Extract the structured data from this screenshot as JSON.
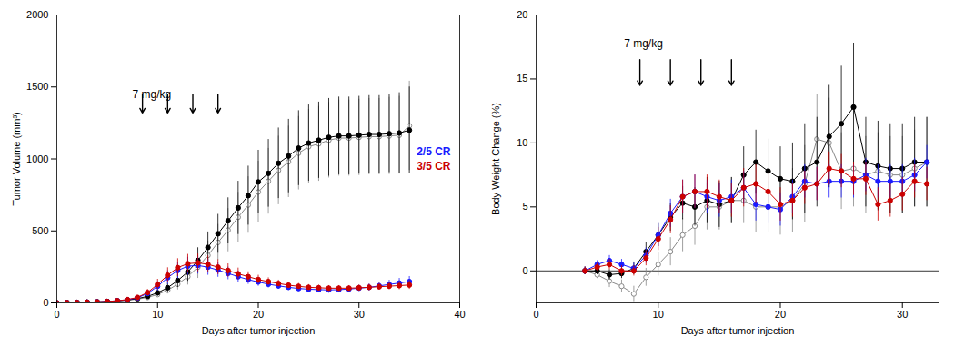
{
  "chart_data": [
    {
      "type": "line",
      "xlabel": "Days after tumor injection",
      "ylabel": "Tumor Volume (mm³)",
      "xlim": [
        0,
        40
      ],
      "xticks": [
        0,
        10,
        20,
        30,
        40
      ],
      "ylim": [
        0,
        2000
      ],
      "yticks": [
        0,
        500,
        1000,
        1500,
        2000
      ],
      "grid": false,
      "legend": "right",
      "annotations": [
        {
          "text": "7 mg/kg",
          "x": 7.5,
          "y": 1420
        }
      ],
      "arrows": [
        {
          "x": 8.5,
          "y_from": 1450,
          "y_to": 1320
        },
        {
          "x": 11,
          "y_from": 1450,
          "y_to": 1320
        },
        {
          "x": 13.5,
          "y_from": 1450,
          "y_to": 1320
        },
        {
          "x": 16,
          "y_from": 1450,
          "y_to": 1320
        }
      ],
      "x": [
        0,
        1,
        2,
        3,
        4,
        5,
        6,
        7,
        8,
        9,
        10,
        11,
        12,
        13,
        14,
        15,
        16,
        17,
        18,
        19,
        20,
        21,
        22,
        23,
        24,
        25,
        26,
        27,
        28,
        29,
        30,
        31,
        32,
        33,
        34,
        35
      ],
      "series": [
        {
          "color": "#888888",
          "marker": "open circle",
          "values": [
            0,
            2,
            3,
            5,
            7,
            9,
            13,
            18,
            26,
            38,
            58,
            88,
            130,
            182,
            248,
            330,
            420,
            505,
            595,
            680,
            770,
            845,
            920,
            980,
            1040,
            1085,
            1105,
            1130,
            1145,
            1145,
            1150,
            1155,
            1155,
            1160,
            1165,
            1230
          ],
          "yerr": [
            0,
            1,
            1,
            2,
            3,
            3,
            4,
            6,
            8,
            12,
            18,
            26,
            40,
            58,
            78,
            100,
            125,
            150,
            173,
            196,
            214,
            228,
            238,
            248,
            255,
            258,
            260,
            262,
            264,
            264,
            265,
            265,
            265,
            268,
            270,
            310
          ]
        },
        {
          "color": "black",
          "marker": "circle",
          "values": [
            0,
            2,
            3,
            5,
            7,
            10,
            14,
            20,
            30,
            45,
            70,
            105,
            155,
            215,
            295,
            385,
            480,
            570,
            660,
            745,
            840,
            900,
            970,
            1020,
            1075,
            1110,
            1130,
            1150,
            1160,
            1160,
            1165,
            1170,
            1170,
            1175,
            1180,
            1200
          ],
          "yerr": [
            0,
            1,
            1,
            2,
            3,
            4,
            5,
            7,
            10,
            15,
            22,
            32,
            48,
            65,
            88,
            108,
            135,
            160,
            185,
            205,
            220,
            235,
            245,
            255,
            260,
            265,
            265,
            270,
            270,
            270,
            270,
            270,
            270,
            270,
            280,
            300
          ]
        },
        {
          "name": "2/5 CR",
          "color": "#1a1aff",
          "marker": "circle",
          "values": [
            0,
            2,
            3,
            5,
            7,
            10,
            15,
            22,
            35,
            65,
            115,
            175,
            225,
            255,
            260,
            248,
            228,
            205,
            182,
            162,
            145,
            130,
            118,
            108,
            100,
            95,
            92,
            90,
            92,
            96,
            102,
            108,
            118,
            128,
            138,
            148
          ],
          "yerr": [
            0,
            1,
            1,
            2,
            3,
            4,
            5,
            7,
            11,
            20,
            33,
            48,
            58,
            62,
            60,
            56,
            50,
            44,
            38,
            33,
            29,
            26,
            23,
            21,
            20,
            19,
            18,
            18,
            18,
            19,
            21,
            23,
            26,
            29,
            32,
            35
          ]
        },
        {
          "name": "3/5 CR",
          "color": "#cc0000",
          "marker": "circle",
          "values": [
            0,
            2,
            3,
            5,
            7,
            10,
            15,
            23,
            38,
            72,
            128,
            192,
            245,
            272,
            278,
            268,
            248,
            225,
            202,
            182,
            162,
            148,
            135,
            123,
            115,
            108,
            105,
            102,
            102,
            102,
            105,
            108,
            112,
            116,
            120,
            124
          ],
          "yerr": [
            0,
            1,
            1,
            2,
            3,
            4,
            5,
            7,
            12,
            22,
            36,
            52,
            62,
            65,
            62,
            58,
            52,
            46,
            40,
            34,
            30,
            26,
            23,
            21,
            20,
            19,
            18,
            18,
            18,
            18,
            19,
            21,
            23,
            25,
            28,
            30
          ]
        }
      ]
    },
    {
      "type": "line",
      "xlabel": "Days after tumor injection",
      "ylabel": "Body Weight Change (%)",
      "xlim": [
        0,
        33
      ],
      "xticks": [
        0,
        10,
        20,
        30
      ],
      "ylim": [
        -2.5,
        20
      ],
      "yticks": [
        0,
        5,
        10,
        15,
        20
      ],
      "grid": false,
      "hlines": [
        0
      ],
      "annotations": [
        {
          "text": "7 mg/kg",
          "x": 7.2,
          "y": 17.5
        }
      ],
      "arrows": [
        {
          "x": 8.5,
          "y_from": 16.5,
          "y_to": 14.5
        },
        {
          "x": 11,
          "y_from": 16.5,
          "y_to": 14.5
        },
        {
          "x": 13.5,
          "y_from": 16.5,
          "y_to": 14.5
        },
        {
          "x": 16,
          "y_from": 16.5,
          "y_to": 14.5
        }
      ],
      "x": [
        4,
        5,
        6,
        7,
        8,
        9,
        10,
        11,
        12,
        13,
        14,
        15,
        16,
        17,
        18,
        19,
        20,
        21,
        22,
        23,
        24,
        25,
        26,
        27,
        28,
        29,
        30,
        31,
        32
      ],
      "series": [
        {
          "color": "#888888",
          "marker": "open circle",
          "values": [
            0.0,
            -0.3,
            -0.8,
            -1.2,
            -1.8,
            -0.5,
            0.5,
            1.5,
            2.8,
            3.5,
            5.0,
            5.0,
            5.5,
            5.5,
            5.0,
            5.0,
            5.0,
            5.5,
            6.8,
            10.3,
            10.0,
            7.8,
            8.0,
            7.5,
            7.8,
            7.5,
            7.5,
            8.0,
            8.5
          ],
          "yerr": [
            0.3,
            0.3,
            0.5,
            0.5,
            0.6,
            0.7,
            0.9,
            1.1,
            1.3,
            1.5,
            1.8,
            1.8,
            1.8,
            1.8,
            2.0,
            2.0,
            2.2,
            2.5,
            3.0,
            3.5,
            3.5,
            3.0,
            3.0,
            3.0,
            3.0,
            3.0,
            3.0,
            3.0,
            3.5
          ]
        },
        {
          "color": "black",
          "marker": "circle",
          "values": [
            0.0,
            0.0,
            -0.3,
            -0.2,
            0.2,
            1.5,
            2.8,
            4.2,
            5.3,
            5.0,
            5.5,
            5.2,
            5.5,
            7.5,
            8.5,
            7.8,
            7.2,
            7.0,
            8.0,
            8.5,
            10.5,
            11.5,
            12.8,
            8.5,
            8.2,
            8.0,
            8.0,
            8.5,
            8.5
          ],
          "yerr": [
            0.3,
            0.3,
            0.4,
            0.4,
            0.5,
            0.7,
            0.9,
            1.1,
            1.3,
            1.5,
            1.8,
            1.8,
            1.8,
            2.2,
            2.5,
            2.5,
            2.5,
            3.0,
            3.5,
            3.5,
            4.0,
            4.5,
            5.0,
            3.5,
            3.5,
            3.5,
            3.5,
            3.5,
            3.5
          ]
        },
        {
          "color": "#1a1aff",
          "marker": "circle",
          "values": [
            0.0,
            0.5,
            0.8,
            0.5,
            0.2,
            1.2,
            2.8,
            4.5,
            5.8,
            6.2,
            5.8,
            5.5,
            5.8,
            6.5,
            5.2,
            5.0,
            4.8,
            5.8,
            7.0,
            6.8,
            7.0,
            7.0,
            7.0,
            7.5,
            7.0,
            7.0,
            7.0,
            7.5,
            8.5
          ],
          "yerr": [
            0.3,
            0.3,
            0.4,
            0.4,
            0.4,
            0.6,
            0.9,
            1.1,
            1.3,
            1.3,
            1.3,
            1.3,
            1.3,
            1.3,
            1.3,
            1.3,
            1.3,
            1.3,
            1.3,
            1.3,
            1.3,
            1.3,
            1.3,
            1.3,
            1.3,
            1.3,
            1.3,
            1.3,
            1.3
          ]
        },
        {
          "color": "#cc0000",
          "marker": "circle",
          "values": [
            0.0,
            0.3,
            0.5,
            0.0,
            0.0,
            1.0,
            2.5,
            4.0,
            5.8,
            6.2,
            6.2,
            5.8,
            5.5,
            6.5,
            6.8,
            6.2,
            5.2,
            5.5,
            6.5,
            6.8,
            8.0,
            7.8,
            7.2,
            7.2,
            5.2,
            5.5,
            6.0,
            7.0,
            6.8
          ],
          "yerr": [
            0.3,
            0.3,
            0.4,
            0.4,
            0.4,
            0.6,
            0.9,
            1.1,
            1.3,
            1.3,
            1.3,
            1.3,
            1.3,
            1.5,
            1.5,
            1.5,
            1.3,
            1.3,
            1.3,
            1.3,
            1.3,
            1.3,
            1.3,
            1.3,
            1.3,
            1.3,
            1.3,
            1.3,
            1.3
          ]
        }
      ]
    }
  ]
}
